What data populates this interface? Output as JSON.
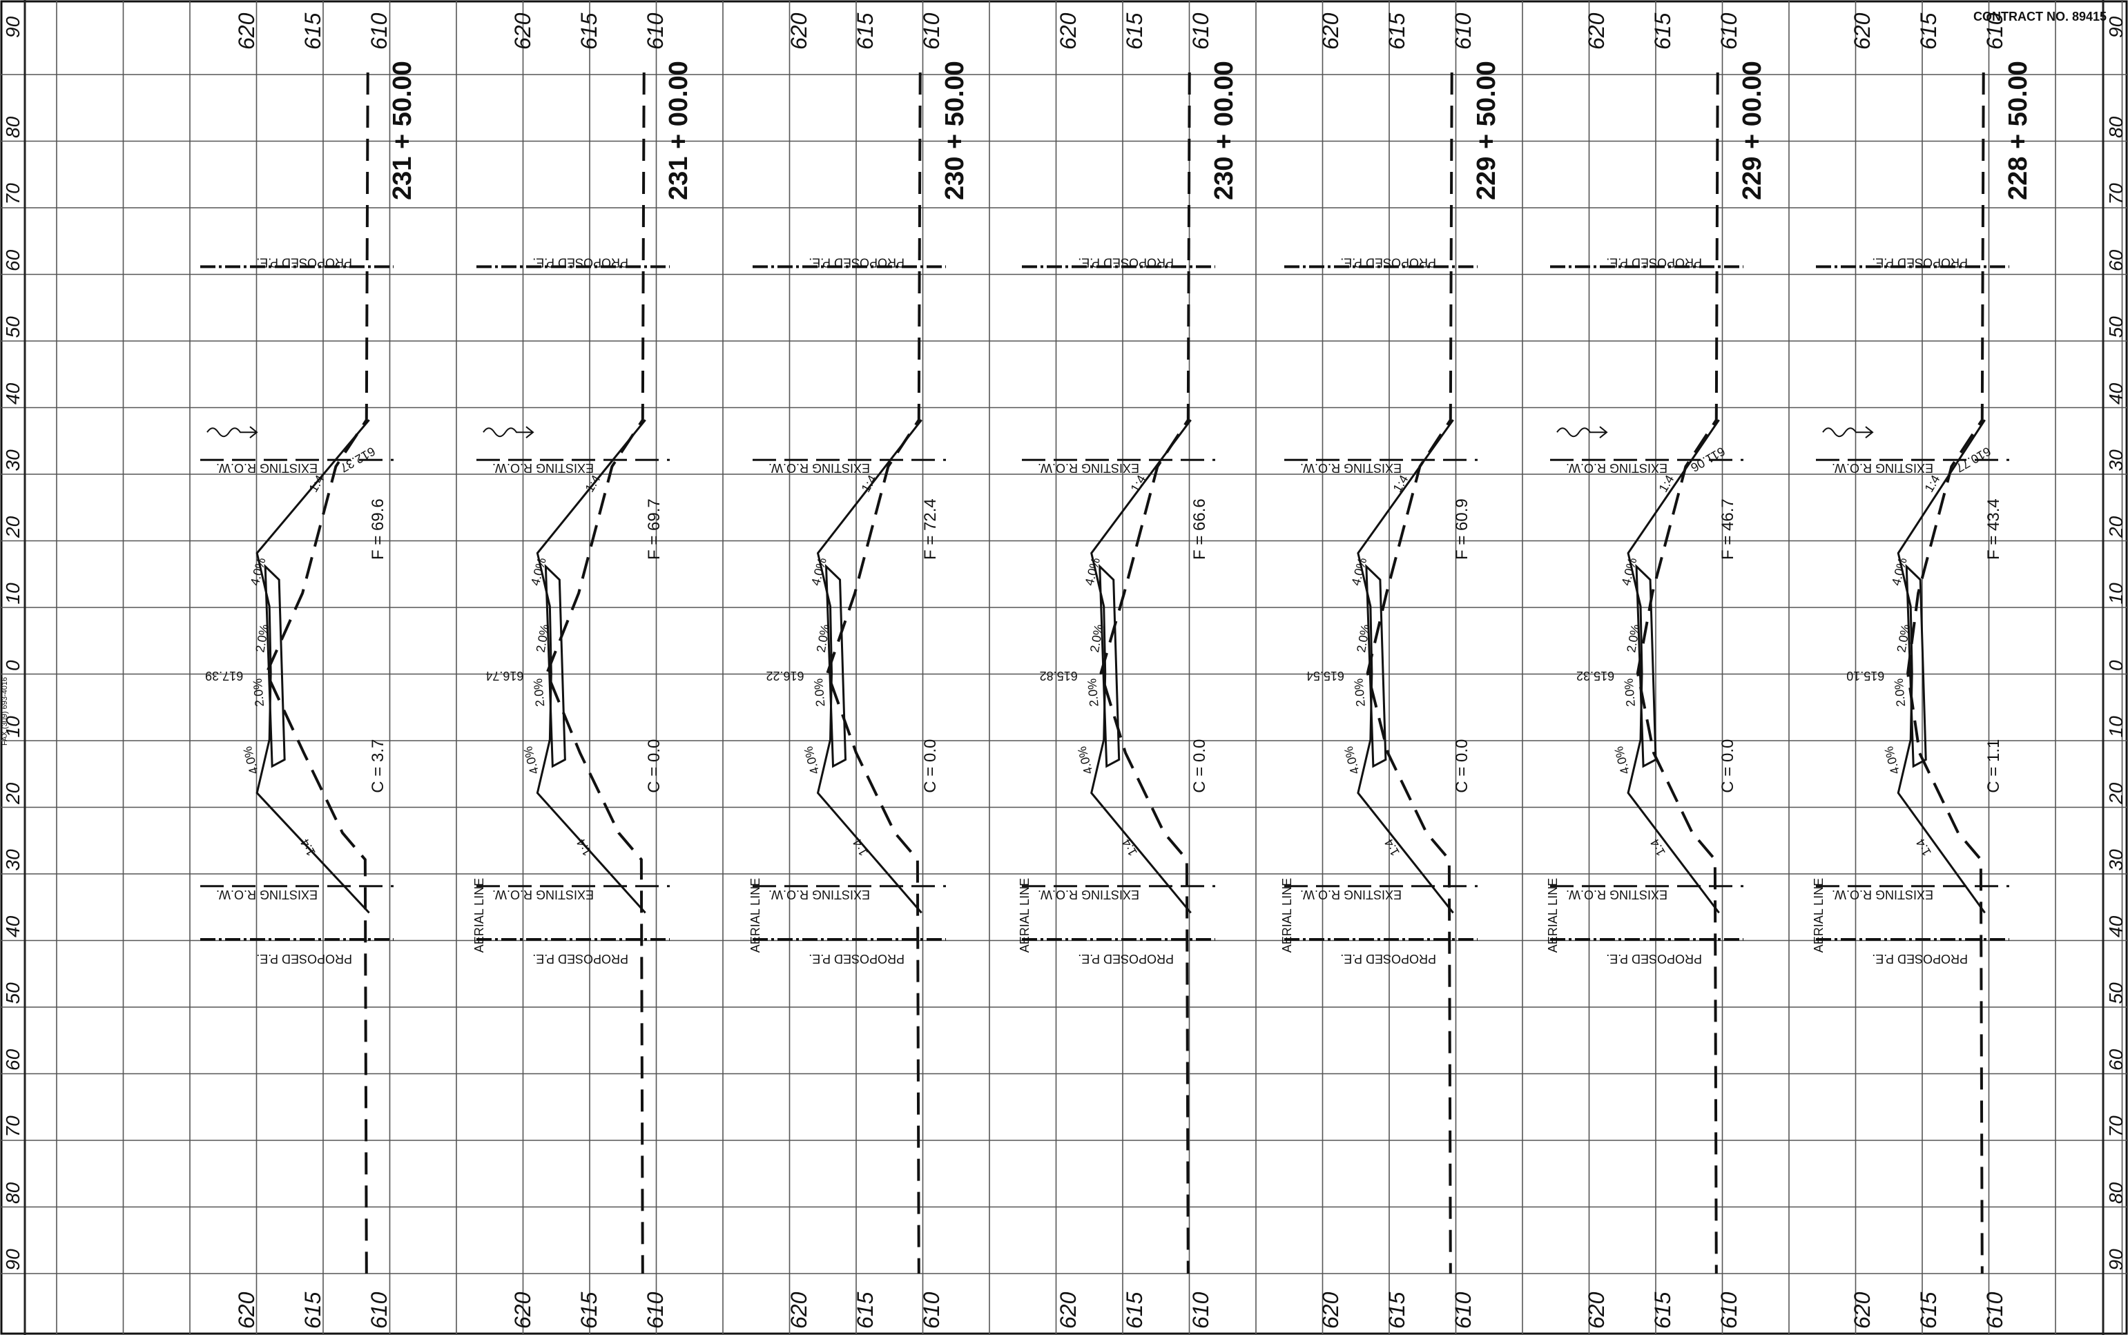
{
  "contract": "CONTRACT NO. 89415",
  "fax_note": "FAX (309) 693-4016",
  "offset_labels": [
    "90",
    "80",
    "70",
    "60",
    "50",
    "40",
    "30",
    "20",
    "10",
    "0",
    "10",
    "20",
    "30",
    "40",
    "50",
    "60",
    "70",
    "80",
    "90"
  ],
  "elevation_labels": [
    "620",
    "615",
    "610"
  ],
  "annotations": {
    "proposed_pe": "PROPOSED P.E.",
    "existing_row": "EXISTING R.O.W.",
    "aerial_line": "AERIAL LINE",
    "slope_outer": "4.0%",
    "slope_inner": "2.0%",
    "side_slope": "1:4"
  },
  "sections": [
    {
      "station": "231 + 50.00",
      "cut": "C = 3.7",
      "fill": "F = 69.6",
      "centerline_elev": "617.39",
      "top_elev": "612.37",
      "aerial": false,
      "flow_arrow": true
    },
    {
      "station": "231 + 00.00",
      "cut": "C = 0.0",
      "fill": "F = 69.7",
      "centerline_elev": "616.74",
      "top_elev": "",
      "aerial": true,
      "flow_arrow": true
    },
    {
      "station": "230 + 50.00",
      "cut": "C = 0.0",
      "fill": "F = 72.4",
      "centerline_elev": "616.22",
      "top_elev": "",
      "aerial": true,
      "flow_arrow": false
    },
    {
      "station": "230 + 00.00",
      "cut": "C = 0.0",
      "fill": "F = 66.6",
      "centerline_elev": "615.82",
      "top_elev": "",
      "aerial": true,
      "flow_arrow": false
    },
    {
      "station": "229 + 50.00",
      "cut": "C = 0.0",
      "fill": "F = 60.9",
      "centerline_elev": "615.54",
      "top_elev": "",
      "aerial": true,
      "flow_arrow": false
    },
    {
      "station": "229 + 00.00",
      "cut": "C = 0.0",
      "fill": "F = 46.7",
      "centerline_elev": "615.32",
      "top_elev": "611.06",
      "aerial": true,
      "flow_arrow": true
    },
    {
      "station": "228 + 50.00",
      "cut": "C = 1.1",
      "fill": "F = 43.4",
      "centerline_elev": "615.10",
      "top_elev": "610.77",
      "aerial": true,
      "flow_arrow": true
    }
  ]
}
